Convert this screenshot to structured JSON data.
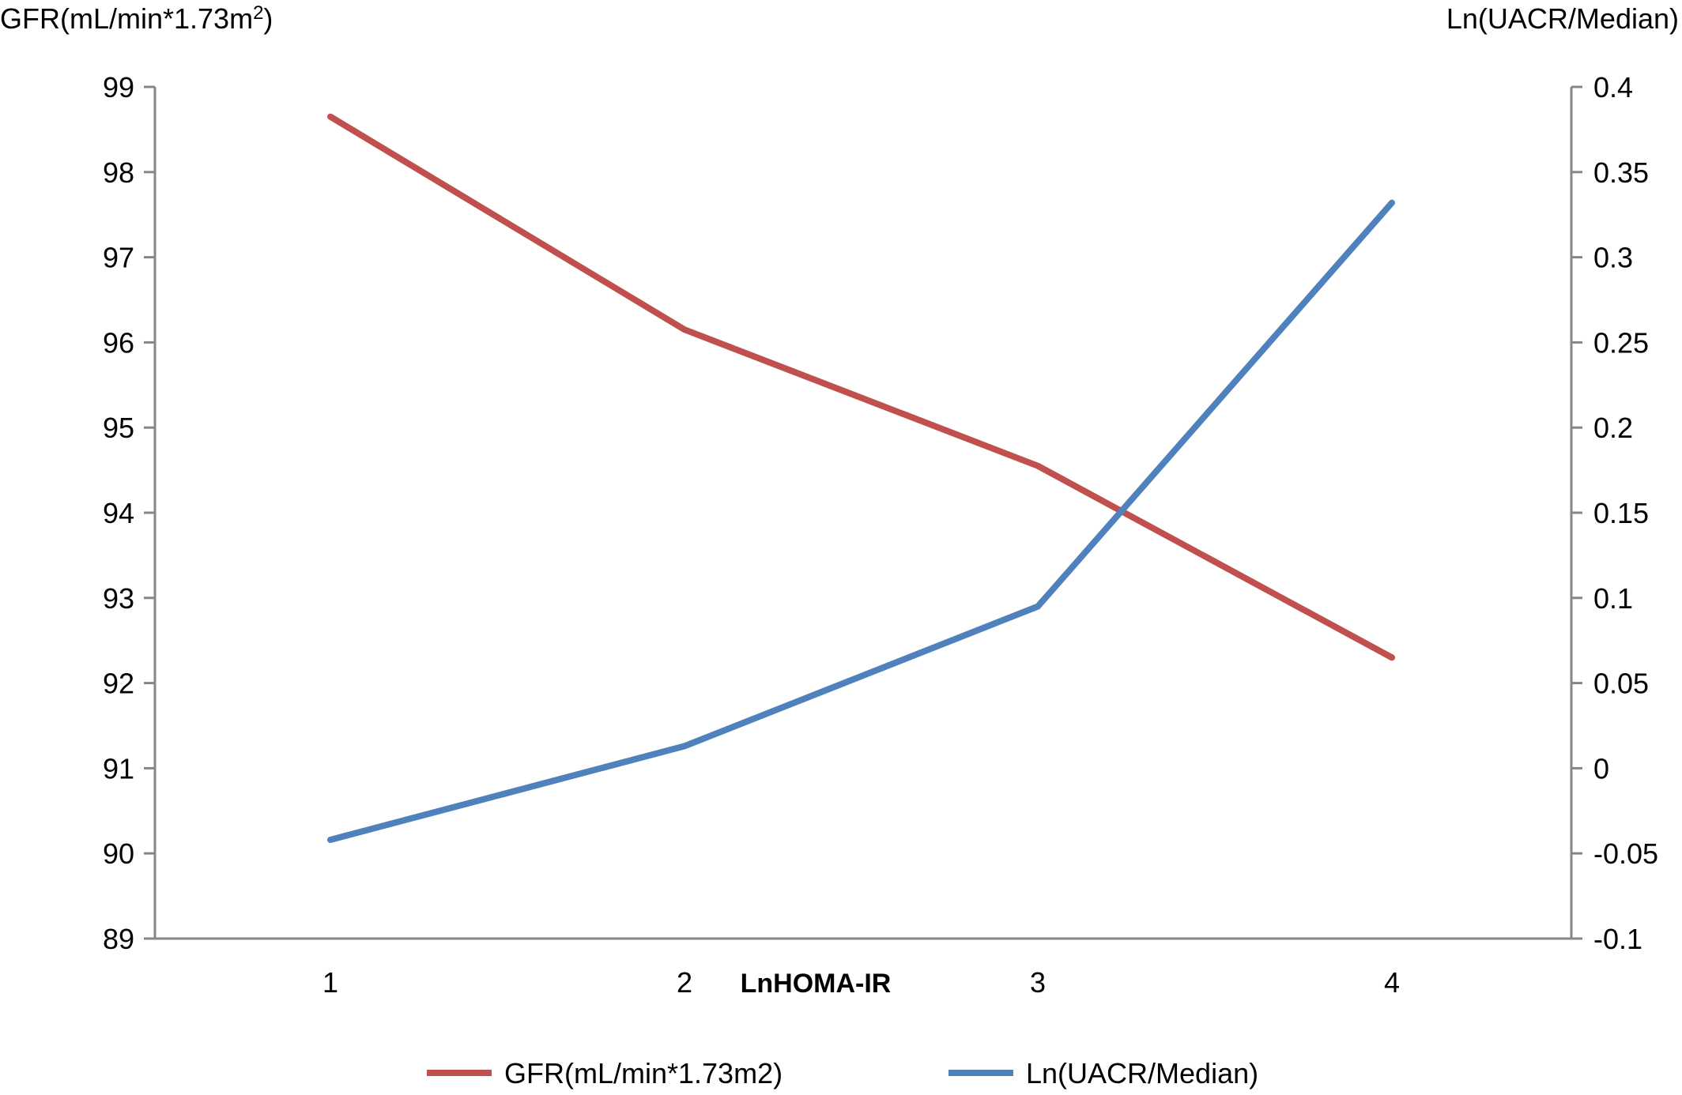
{
  "chart_data": {
    "type": "line",
    "x": [
      1,
      2,
      3,
      4
    ],
    "xlabel": "LnHOMA-IR",
    "x_tick_labels": [
      "1",
      "2",
      "3",
      "4"
    ],
    "left_axis": {
      "label_main": "GFR(mL/min*1.73m",
      "label_sup": "2",
      "label_end": ")",
      "ylim": [
        89,
        99
      ],
      "ticks": [
        "89",
        "90",
        "91",
        "92",
        "93",
        "94",
        "95",
        "96",
        "97",
        "98",
        "99"
      ]
    },
    "right_axis": {
      "label": "Ln(UACR/Median)",
      "ylim": [
        -0.1,
        0.4
      ],
      "ticks": [
        "-0.1",
        "-0.05",
        "0",
        "0.05",
        "0.1",
        "0.15",
        "0.2",
        "0.25",
        "0.3",
        "0.35",
        "0.4"
      ]
    },
    "series": [
      {
        "name": "GFR(mL/min*1.73m2)",
        "axis": "left",
        "color": "#c0504d",
        "values": [
          98.65,
          96.15,
          94.55,
          92.3
        ]
      },
      {
        "name": "Ln(UACR/Median)",
        "axis": "right",
        "color": "#4f81bd",
        "values": [
          -0.042,
          0.013,
          0.095,
          0.332
        ]
      }
    ],
    "grid": false,
    "legend_position": "bottom"
  }
}
